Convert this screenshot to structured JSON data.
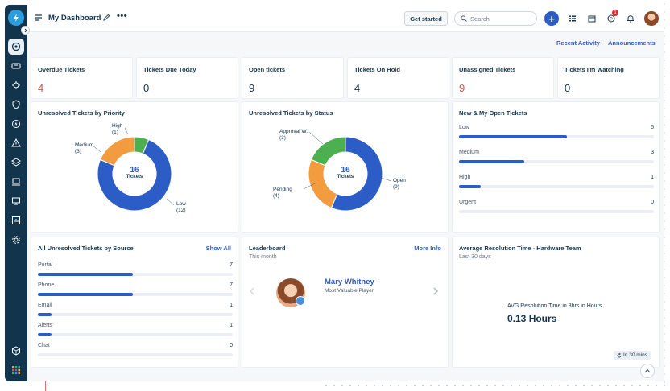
{
  "header": {
    "title": "My Dashboard",
    "get_started": "Get started",
    "search_placeholder": "Search",
    "plus_label": "+",
    "help_badge": "1"
  },
  "subnav": {
    "recent_activity": "Recent Activity",
    "announcements": "Announcements"
  },
  "stats": [
    {
      "label": "Overdue Tickets",
      "value": "4",
      "alert": true
    },
    {
      "label": "Tickets Due Today",
      "value": "0",
      "alert": false
    },
    {
      "label": "Open tickets",
      "value": "9",
      "alert": false
    },
    {
      "label": "Tickets On Hold",
      "value": "4",
      "alert": false
    },
    {
      "label": "Unassigned Tickets",
      "value": "9",
      "alert": true
    },
    {
      "label": "Tickets I'm Watching",
      "value": "0",
      "alert": false
    }
  ],
  "priority_widget": {
    "title": "Unresolved Tickets by Priority",
    "center_value": "16",
    "center_label": "Tickets",
    "labels": {
      "high": "High",
      "high_count": "(1)",
      "medium": "Medium",
      "medium_count": "(3)",
      "low": "Low",
      "low_count": "(12)"
    }
  },
  "status_widget": {
    "title": "Unresolved Tickets by Status",
    "center_value": "16",
    "center_label": "Tickets",
    "labels": {
      "approval": "Approval W...",
      "approval_count": "(3)",
      "pending": "Pending",
      "pending_count": "(4)",
      "open": "Open",
      "open_count": "(9)"
    }
  },
  "new_open_widget": {
    "title": "New & My Open Tickets",
    "rows": [
      {
        "label": "Low",
        "count": "5"
      },
      {
        "label": "Medium",
        "count": "3"
      },
      {
        "label": "High",
        "count": "1"
      },
      {
        "label": "Urgent",
        "count": "0"
      }
    ]
  },
  "source_widget": {
    "title": "All Unresolved Tickets by Source",
    "link": "Show All",
    "rows": [
      {
        "label": "Portal",
        "count": "7"
      },
      {
        "label": "Phone",
        "count": "7"
      },
      {
        "label": "Email",
        "count": "1"
      },
      {
        "label": "Alerts",
        "count": "1"
      },
      {
        "label": "Chat",
        "count": "0"
      }
    ]
  },
  "leaderboard": {
    "title": "Leaderboard",
    "link": "More Info",
    "period": "This month",
    "name": "Mary Whitney",
    "role": "Most Valuable Player"
  },
  "resolution_widget": {
    "title": "Average Resolution Time - Hardware Team",
    "period": "Last 30 days",
    "metric_label": "AVG Resolution Time in 8hrs in Hours",
    "metric_value": "0.13 Hours",
    "refresh": "In 30 mins"
  },
  "chart_data": [
    {
      "type": "pie",
      "title": "Unresolved Tickets by Priority",
      "categories": [
        "Low",
        "Medium",
        "High"
      ],
      "values": [
        12,
        3,
        1
      ],
      "colors": [
        "#2c5cc5",
        "#f39c3f",
        "#4caf50"
      ]
    },
    {
      "type": "pie",
      "title": "Unresolved Tickets by Status",
      "categories": [
        "Open",
        "Pending",
        "Approval W..."
      ],
      "values": [
        9,
        4,
        3
      ],
      "colors": [
        "#2c5cc5",
        "#f39c3f",
        "#4caf50"
      ]
    }
  ],
  "colors": {
    "brand": "#2c5cc5",
    "sidebar": "#12344d",
    "alert": "#e44a4a"
  }
}
